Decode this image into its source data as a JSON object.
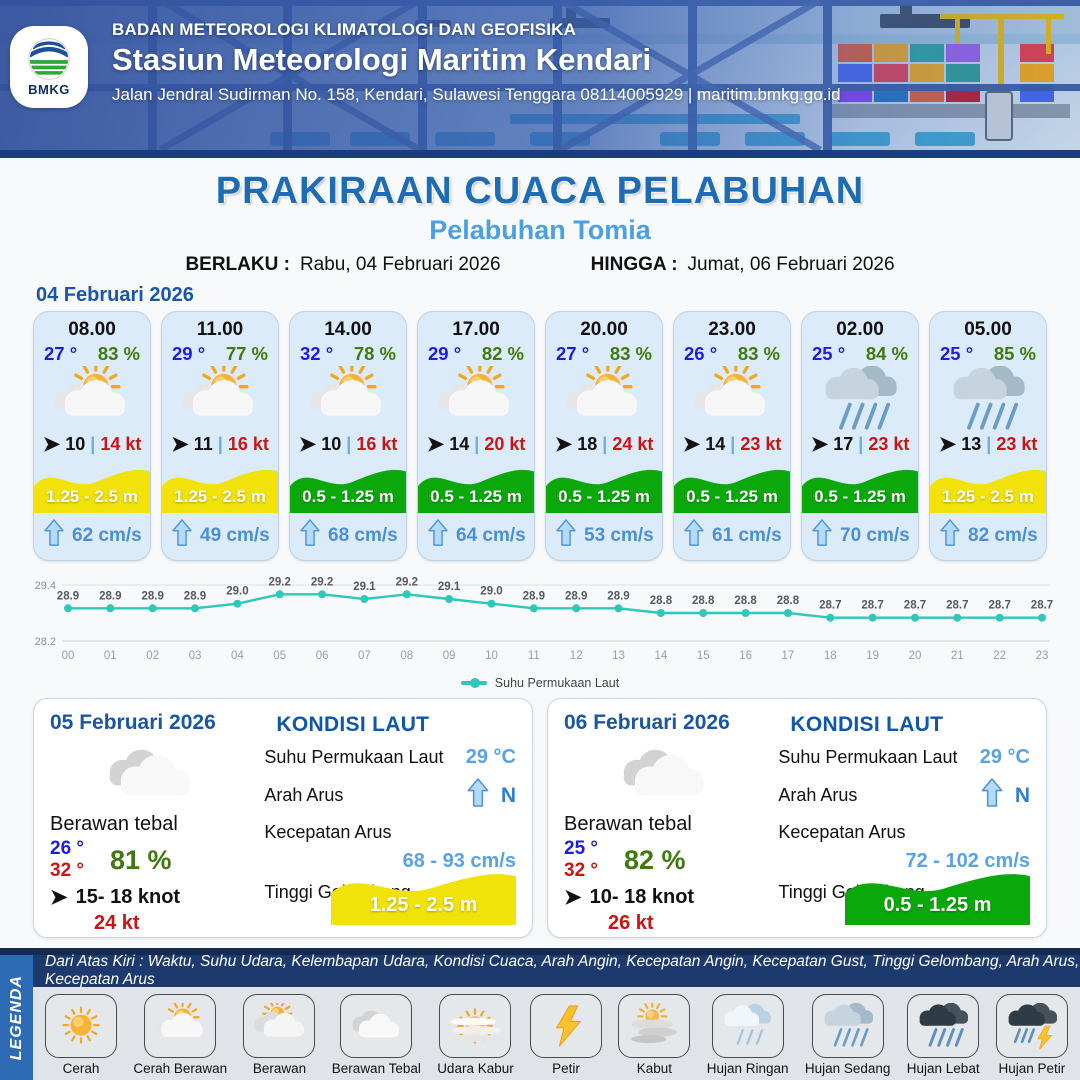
{
  "header": {
    "agency": "BADAN METEOROLOGI KLIMATOLOGI DAN GEOFISIKA",
    "station": "Stasiun Meteorologi Maritim Kendari",
    "address": "Jalan Jendral Sudirman No. 158, Kendari, Sulawesi Tenggara  08114005929 | maritim.bmkg.go.id",
    "logo_label": "BMKG"
  },
  "title_block": {
    "title": "PRAKIRAAN CUACA PELABUHAN",
    "subtitle": "Pelabuhan Tomia",
    "berlaku_label": "BERLAKU :",
    "berlaku": "Rabu, 04 Februari 2026",
    "hingga_label": "HINGGA :",
    "hingga": "Jumat, 06 Februari 2026"
  },
  "day1": {
    "date": "04 Februari 2026",
    "hours": [
      {
        "time": "08.00",
        "temp": "27 °",
        "humidity": "83 %",
        "icon": "cerah-berawan",
        "wind": "10",
        "gust": "14 kt",
        "wave": "1.25 - 2.5 m",
        "wave_color": "yellow",
        "current": "62 cm/s"
      },
      {
        "time": "11.00",
        "temp": "29 °",
        "humidity": "77 %",
        "icon": "cerah-berawan",
        "wind": "11",
        "gust": "16 kt",
        "wave": "1.25 - 2.5 m",
        "wave_color": "yellow",
        "current": "49 cm/s"
      },
      {
        "time": "14.00",
        "temp": "32 °",
        "humidity": "78 %",
        "icon": "cerah-berawan",
        "wind": "10",
        "gust": "16 kt",
        "wave": "0.5 - 1.25 m",
        "wave_color": "green",
        "current": "68 cm/s"
      },
      {
        "time": "17.00",
        "temp": "29 °",
        "humidity": "82 %",
        "icon": "cerah-berawan",
        "wind": "14",
        "gust": "20 kt",
        "wave": "0.5 - 1.25 m",
        "wave_color": "green",
        "current": "64 cm/s"
      },
      {
        "time": "20.00",
        "temp": "27 °",
        "humidity": "83 %",
        "icon": "cerah-berawan",
        "wind": "18",
        "gust": "24 kt",
        "wave": "0.5 - 1.25 m",
        "wave_color": "green",
        "current": "53 cm/s"
      },
      {
        "time": "23.00",
        "temp": "26 °",
        "humidity": "83 %",
        "icon": "cerah-berawan",
        "wind": "14",
        "gust": "23 kt",
        "wave": "0.5 - 1.25 m",
        "wave_color": "green",
        "current": "61 cm/s"
      },
      {
        "time": "02.00",
        "temp": "25 °",
        "humidity": "84 %",
        "icon": "hujan-sedang",
        "wind": "17",
        "gust": "23 kt",
        "wave": "0.5 - 1.25 m",
        "wave_color": "green",
        "current": "70 cm/s"
      },
      {
        "time": "05.00",
        "temp": "25 °",
        "humidity": "85 %",
        "icon": "hujan-sedang",
        "wind": "13",
        "gust": "23 kt",
        "wave": "1.25 - 2.5 m",
        "wave_color": "yellow",
        "current": "82 cm/s"
      }
    ]
  },
  "chart_data": {
    "type": "line",
    "series_name": "Suhu Permukaan Laut",
    "x": [
      "00",
      "01",
      "02",
      "03",
      "04",
      "05",
      "06",
      "07",
      "08",
      "09",
      "10",
      "11",
      "12",
      "13",
      "14",
      "15",
      "16",
      "17",
      "18",
      "19",
      "20",
      "21",
      "22",
      "23"
    ],
    "values": [
      28.9,
      28.9,
      28.9,
      28.9,
      29.0,
      29.2,
      29.2,
      29.1,
      29.2,
      29.1,
      29.0,
      28.9,
      28.9,
      28.9,
      28.8,
      28.8,
      28.8,
      28.8,
      28.7,
      28.7,
      28.7,
      28.7,
      28.7,
      28.7
    ],
    "ylim": [
      28.2,
      29.4
    ],
    "grid": "horizontal-minmax",
    "legend_position": "bottom-center",
    "line_color": "#2ec8b8"
  },
  "day_cards": [
    {
      "date": "05 Februari 2026",
      "condition": "Berawan tebal",
      "icon": "berawan-tebal",
      "temp_min": "26 °",
      "temp_max": "32 °",
      "humidity": "81 %",
      "wind": "15- 18 knot",
      "gust": "24 kt",
      "sea": {
        "heading": "KONDISI LAUT",
        "sst_label": "Suhu Permukaan Laut",
        "sst_value": "29 °C",
        "current_dir_label": "Arah Arus",
        "current_dir_value": "N",
        "current_speed_label": "Kecepatan Arus",
        "current_speed_value": "68 - 93 cm/s",
        "wave_label": "Tinggi Gelombang",
        "wave_value": "1.25 - 2.5 m",
        "wave_color": "yellow"
      }
    },
    {
      "date": "06 Februari 2026",
      "condition": "Berawan tebal",
      "icon": "berawan-tebal",
      "temp_min": "25 °",
      "temp_max": "32 °",
      "humidity": "82 %",
      "wind": "10- 18 knot",
      "gust": "26 kt",
      "sea": {
        "heading": "KONDISI LAUT",
        "sst_label": "Suhu Permukaan Laut",
        "sst_value": "29 °C",
        "current_dir_label": "Arah Arus",
        "current_dir_value": "N",
        "current_speed_label": "Kecepatan Arus",
        "current_speed_value": "72 - 102 cm/s",
        "wave_label": "Tinggi Gelombang",
        "wave_value": "0.5 - 1.25 m",
        "wave_color": "green"
      }
    }
  ],
  "legend": {
    "strip": "LEGENDA",
    "caption": "Dari Atas Kiri : Waktu, Suhu Udara, Kelembapan Udara, Kondisi Cuaca, Arah Angin, Kecepatan Angin, Kecepatan Gust, Tinggi Gelombang, Arah Arus, Kecepatan Arus",
    "items": [
      {
        "label": "Cerah",
        "icon": "cerah"
      },
      {
        "label": "Cerah Berawan",
        "icon": "cerah-berawan"
      },
      {
        "label": "Berawan",
        "icon": "berawan"
      },
      {
        "label": "Berawan Tebal",
        "icon": "berawan-tebal"
      },
      {
        "label": "Udara Kabur",
        "icon": "udara-kabur"
      },
      {
        "label": "Petir",
        "icon": "petir"
      },
      {
        "label": "Kabut",
        "icon": "kabut"
      },
      {
        "label": "Hujan Ringan",
        "icon": "hujan-ringan"
      },
      {
        "label": "Hujan Sedang",
        "icon": "hujan-sedang"
      },
      {
        "label": "Hujan Lebat",
        "icon": "hujan-lebat"
      },
      {
        "label": "Hujan Petir",
        "icon": "hujan-petir"
      }
    ]
  },
  "colors": {
    "wave_yellow": "#f1e309",
    "wave_green": "#0ba80b",
    "temp_blue": "#1d1de0",
    "humidity_green": "#3f7a10",
    "gust_red": "#cc1414",
    "current_blue": "#4a90d9",
    "line_teal": "#2ec8b8"
  }
}
